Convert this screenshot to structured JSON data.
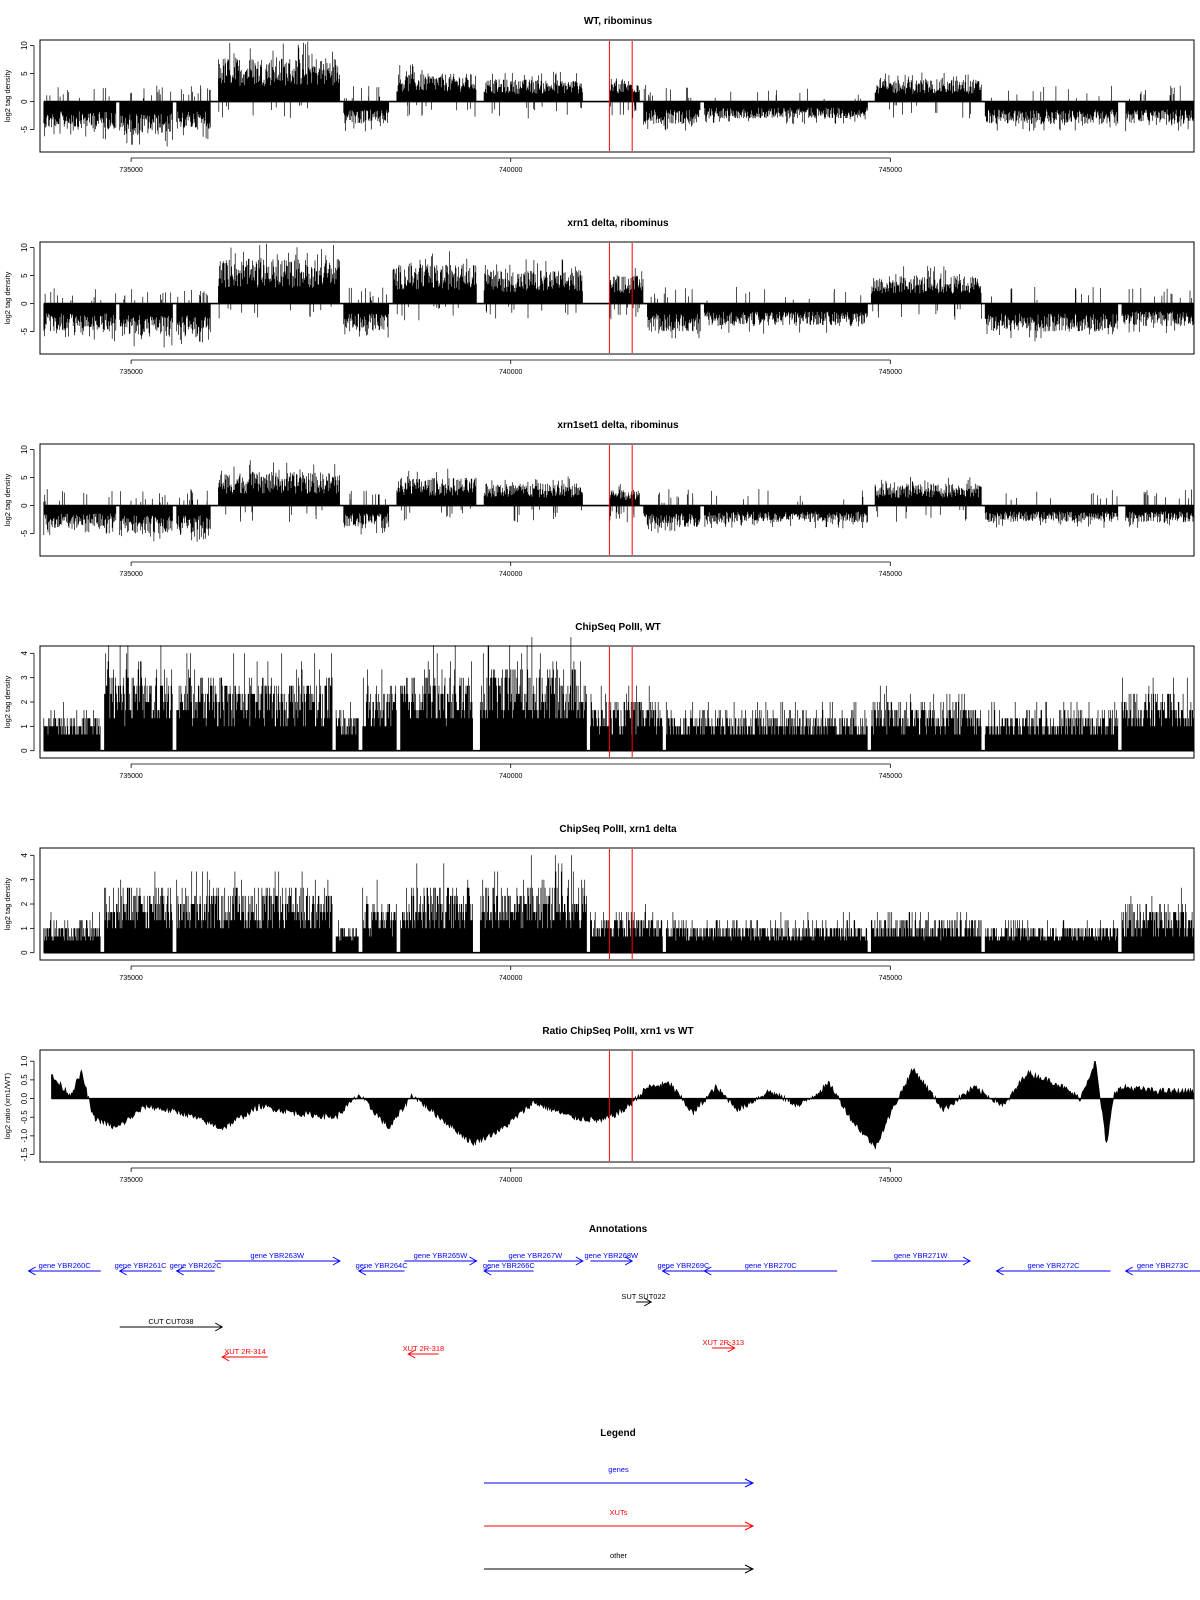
{
  "chart_data": [
    {
      "type": "bar",
      "title": "WT, ribominus",
      "xlabel": "",
      "ylabel": "log2 tag density",
      "xlim": [
        733800,
        749000
      ],
      "ylim": [
        -9,
        11
      ],
      "yticks": [
        -5,
        0,
        5,
        10
      ],
      "xticks": [
        735000,
        740000,
        745000
      ],
      "x_tick_labels": [
        "735000",
        "740000",
        "745000"
      ],
      "marker_lines_x": [
        741300,
        741600
      ],
      "segments": [
        {
          "start": 733850,
          "end": 734800,
          "sign": -1,
          "amp": 5
        },
        {
          "start": 734850,
          "end": 735550,
          "sign": -1,
          "amp": 6
        },
        {
          "start": 735600,
          "end": 736050,
          "sign": -1,
          "amp": 5
        },
        {
          "start": 736150,
          "end": 737750,
          "sign": 1,
          "amp": 8
        },
        {
          "start": 737800,
          "end": 738400,
          "sign": -1,
          "amp": 4
        },
        {
          "start": 738500,
          "end": 739550,
          "sign": 1,
          "amp": 5
        },
        {
          "start": 739650,
          "end": 740950,
          "sign": 1,
          "amp": 4
        },
        {
          "start": 741300,
          "end": 741700,
          "sign": 1,
          "amp": 4
        },
        {
          "start": 741750,
          "end": 742500,
          "sign": -1,
          "amp": 4
        },
        {
          "start": 742550,
          "end": 744700,
          "sign": -1,
          "amp": 3
        },
        {
          "start": 744800,
          "end": 746200,
          "sign": 1,
          "amp": 4
        },
        {
          "start": 746250,
          "end": 748000,
          "sign": -1,
          "amp": 4
        },
        {
          "start": 748100,
          "end": 749000,
          "sign": -1,
          "amp": 4
        }
      ]
    },
    {
      "type": "bar",
      "title": "xrn1 delta, ribominus",
      "xlabel": "",
      "ylabel": "log2 tag density",
      "xlim": [
        733800,
        749000
      ],
      "ylim": [
        -9,
        11
      ],
      "yticks": [
        -5,
        0,
        5,
        10
      ],
      "xticks": [
        735000,
        740000,
        745000
      ],
      "x_tick_labels": [
        "735000",
        "740000",
        "745000"
      ],
      "marker_lines_x": [
        741300,
        741600
      ],
      "segments": [
        {
          "start": 733850,
          "end": 734800,
          "sign": -1,
          "amp": 5
        },
        {
          "start": 734850,
          "end": 735550,
          "sign": -1,
          "amp": 6
        },
        {
          "start": 735600,
          "end": 736050,
          "sign": -1,
          "amp": 6
        },
        {
          "start": 736150,
          "end": 737750,
          "sign": 1,
          "amp": 8
        },
        {
          "start": 737800,
          "end": 738400,
          "sign": -1,
          "amp": 5
        },
        {
          "start": 738450,
          "end": 739550,
          "sign": 1,
          "amp": 7
        },
        {
          "start": 739650,
          "end": 740950,
          "sign": 1,
          "amp": 6
        },
        {
          "start": 741300,
          "end": 741750,
          "sign": 1,
          "amp": 5
        },
        {
          "start": 741800,
          "end": 742500,
          "sign": -1,
          "amp": 5
        },
        {
          "start": 742550,
          "end": 744700,
          "sign": -1,
          "amp": 4
        },
        {
          "start": 744750,
          "end": 746200,
          "sign": 1,
          "amp": 5
        },
        {
          "start": 746250,
          "end": 748000,
          "sign": -1,
          "amp": 5
        },
        {
          "start": 748050,
          "end": 749000,
          "sign": -1,
          "amp": 4
        }
      ]
    },
    {
      "type": "bar",
      "title": "xrn1set1 delta, ribominus",
      "xlabel": "",
      "ylabel": "log2 tag density",
      "xlim": [
        733800,
        749000
      ],
      "ylim": [
        -9,
        11
      ],
      "yticks": [
        -5,
        0,
        5,
        10
      ],
      "xticks": [
        735000,
        740000,
        745000
      ],
      "x_tick_labels": [
        "735000",
        "740000",
        "745000"
      ],
      "marker_lines_x": [
        741300,
        741600
      ],
      "segments": [
        {
          "start": 733850,
          "end": 734800,
          "sign": -1,
          "amp": 4
        },
        {
          "start": 734850,
          "end": 735550,
          "sign": -1,
          "amp": 5
        },
        {
          "start": 735600,
          "end": 736050,
          "sign": -1,
          "amp": 5
        },
        {
          "start": 736150,
          "end": 737750,
          "sign": 1,
          "amp": 6
        },
        {
          "start": 737800,
          "end": 738400,
          "sign": -1,
          "amp": 4
        },
        {
          "start": 738500,
          "end": 739550,
          "sign": 1,
          "amp": 5
        },
        {
          "start": 739650,
          "end": 740950,
          "sign": 1,
          "amp": 4
        },
        {
          "start": 741300,
          "end": 741700,
          "sign": 1,
          "amp": 3
        },
        {
          "start": 741750,
          "end": 742500,
          "sign": -1,
          "amp": 4
        },
        {
          "start": 742550,
          "end": 744700,
          "sign": -1,
          "amp": 3
        },
        {
          "start": 744800,
          "end": 746200,
          "sign": 1,
          "amp": 4
        },
        {
          "start": 746250,
          "end": 748000,
          "sign": -1,
          "amp": 3
        },
        {
          "start": 748100,
          "end": 749000,
          "sign": -1,
          "amp": 3
        }
      ]
    },
    {
      "type": "bar",
      "title": "ChipSeq PolII, WT",
      "xlabel": "",
      "ylabel": "log2 tag density",
      "xlim": [
        733800,
        749000
      ],
      "ylim": [
        -0.3,
        4.3
      ],
      "yticks": [
        0,
        1,
        2,
        3,
        4
      ],
      "xticks": [
        735000,
        740000,
        745000
      ],
      "x_tick_labels": [
        "735000",
        "740000",
        "745000"
      ],
      "marker_lines_x": [
        741300,
        741600
      ],
      "segments": [
        {
          "start": 733850,
          "end": 734600,
          "sign": 1,
          "amp": 1.5
        },
        {
          "start": 734650,
          "end": 735550,
          "sign": 1,
          "amp": 3.2
        },
        {
          "start": 735600,
          "end": 737650,
          "sign": 1,
          "amp": 3.0
        },
        {
          "start": 737700,
          "end": 738000,
          "sign": 1,
          "amp": 1.5
        },
        {
          "start": 738050,
          "end": 738500,
          "sign": 1,
          "amp": 2.6
        },
        {
          "start": 738550,
          "end": 739500,
          "sign": 1,
          "amp": 3.2
        },
        {
          "start": 739600,
          "end": 741000,
          "sign": 1,
          "amp": 3.5
        },
        {
          "start": 741050,
          "end": 742000,
          "sign": 1,
          "amp": 2.0
        },
        {
          "start": 742050,
          "end": 744700,
          "sign": 1,
          "amp": 1.6
        },
        {
          "start": 744750,
          "end": 746200,
          "sign": 1,
          "amp": 2.0
        },
        {
          "start": 746250,
          "end": 748000,
          "sign": 1,
          "amp": 1.6
        },
        {
          "start": 748050,
          "end": 749000,
          "sign": 1,
          "amp": 2.4
        }
      ]
    },
    {
      "type": "bar",
      "title": "ChipSeq PolII, xrn1 delta",
      "xlabel": "",
      "ylabel": "log2 tag density",
      "xlim": [
        733800,
        749000
      ],
      "ylim": [
        -0.3,
        4.3
      ],
      "yticks": [
        0,
        1,
        2,
        3,
        4
      ],
      "xticks": [
        735000,
        740000,
        745000
      ],
      "x_tick_labels": [
        "735000",
        "740000",
        "745000"
      ],
      "marker_lines_x": [
        741300,
        741600
      ],
      "segments": [
        {
          "start": 733850,
          "end": 734600,
          "sign": 1,
          "amp": 1.2
        },
        {
          "start": 734650,
          "end": 735550,
          "sign": 1,
          "amp": 2.7
        },
        {
          "start": 735600,
          "end": 737650,
          "sign": 1,
          "amp": 2.6
        },
        {
          "start": 737700,
          "end": 738000,
          "sign": 1,
          "amp": 1.0
        },
        {
          "start": 738050,
          "end": 738500,
          "sign": 1,
          "amp": 2.2
        },
        {
          "start": 738550,
          "end": 739500,
          "sign": 1,
          "amp": 2.8
        },
        {
          "start": 739600,
          "end": 741000,
          "sign": 1,
          "amp": 2.9
        },
        {
          "start": 741050,
          "end": 742000,
          "sign": 1,
          "amp": 1.6
        },
        {
          "start": 742050,
          "end": 744700,
          "sign": 1,
          "amp": 1.2
        },
        {
          "start": 744750,
          "end": 746200,
          "sign": 1,
          "amp": 1.4
        },
        {
          "start": 746250,
          "end": 748000,
          "sign": 1,
          "amp": 1.1
        },
        {
          "start": 748050,
          "end": 749000,
          "sign": 1,
          "amp": 2.0
        }
      ]
    },
    {
      "type": "area",
      "title": "Ratio ChipSeq PolII, xrn1 vs WT",
      "xlabel": "",
      "ylabel": "log2 ratio (xrn1/WT)",
      "xlim": [
        733800,
        749000
      ],
      "ylim": [
        -1.7,
        1.3
      ],
      "yticks": [
        -1.5,
        -1.0,
        -0.5,
        0.0,
        0.5,
        1.0
      ],
      "y_tick_labels": [
        "-1.5",
        "-1.0",
        "-0.5",
        "0.0",
        "0.5",
        "1.0"
      ],
      "xticks": [
        735000,
        740000,
        745000
      ],
      "x_tick_labels": [
        "735000",
        "740000",
        "745000"
      ],
      "marker_lines_x": [
        741300,
        741600
      ],
      "x": [
        733950,
        734200,
        734350,
        734500,
        734800,
        735200,
        735700,
        736200,
        736700,
        737200,
        737700,
        738000,
        738400,
        738700,
        739000,
        739500,
        739900,
        740300,
        740800,
        741200,
        741500,
        741800,
        742100,
        742400,
        742700,
        743000,
        743400,
        743800,
        744200,
        744500,
        744800,
        745050,
        745300,
        745700,
        746100,
        746500,
        746800,
        747200,
        747500,
        747700,
        747850,
        747950,
        748100,
        748500,
        749000
      ],
      "values": [
        0.6,
        0.1,
        0.7,
        -0.5,
        -0.8,
        -0.2,
        -0.4,
        -0.8,
        -0.2,
        -0.4,
        -0.5,
        0.1,
        -0.8,
        0.1,
        -0.4,
        -1.2,
        -0.8,
        -0.1,
        -0.5,
        -0.6,
        -0.3,
        0.3,
        0.4,
        -0.4,
        0.3,
        -0.3,
        0.2,
        -0.2,
        0.4,
        -0.6,
        -1.3,
        -0.2,
        0.8,
        -0.3,
        0.3,
        -0.2,
        0.7,
        0.4,
        0.0,
        1.0,
        -1.3,
        0.2,
        0.3,
        0.2,
        0.2
      ]
    }
  ],
  "annotations": {
    "title": "Annotations",
    "genes": [
      {
        "label": "gene YBR260C",
        "start": 733650,
        "end": 734600,
        "dir": "left",
        "row": 1
      },
      {
        "label": "gene YBR261C",
        "start": 734850,
        "end": 735400,
        "dir": "left",
        "row": 1
      },
      {
        "label": "gene YBR262C",
        "start": 735600,
        "end": 736100,
        "dir": "left",
        "row": 1
      },
      {
        "label": "gene YBR263W",
        "start": 736100,
        "end": 737750,
        "dir": "right",
        "row": 0
      },
      {
        "label": "gene YBR264C",
        "start": 738000,
        "end": 738600,
        "dir": "left",
        "row": 1
      },
      {
        "label": "gene YBR265W",
        "start": 738600,
        "end": 739550,
        "dir": "right",
        "row": 0
      },
      {
        "label": "gene YBR266C",
        "start": 739650,
        "end": 740300,
        "dir": "left",
        "row": 1
      },
      {
        "label": "gene YBR267W",
        "start": 739700,
        "end": 740950,
        "dir": "right",
        "row": 0
      },
      {
        "label": "gene YBR268W",
        "start": 741050,
        "end": 741600,
        "dir": "right",
        "row": 0
      },
      {
        "label": "gene YBR269C",
        "start": 742000,
        "end": 742550,
        "dir": "left",
        "row": 1
      },
      {
        "label": "gene YBR270C",
        "start": 742550,
        "end": 744300,
        "dir": "left",
        "row": 1
      },
      {
        "label": "gene YBR271W",
        "start": 744750,
        "end": 746050,
        "dir": "right",
        "row": 0
      },
      {
        "label": "gene YBR272C",
        "start": 746400,
        "end": 747900,
        "dir": "left",
        "row": 1
      },
      {
        "label": "gene YBR273C",
        "start": 748100,
        "end": 749450,
        "dir": "left",
        "row": 1
      }
    ],
    "others": [
      {
        "label": "CUT CUT038",
        "start": 734850,
        "end": 736200,
        "dir": "right",
        "row": 3
      },
      {
        "label": "SUT SUT022",
        "start": 741650,
        "end": 741850,
        "dir": "right",
        "row": 2
      }
    ],
    "xuts": [
      {
        "label": "XUT 2R-314",
        "start": 736200,
        "end": 736800,
        "dir": "left",
        "row": 4
      },
      {
        "label": "XUT 2R-318",
        "start": 738650,
        "end": 739050,
        "dir": "left",
        "row": 5
      },
      {
        "label": "XUT 2R-313",
        "start": 742650,
        "end": 742950,
        "dir": "right",
        "row": 6
      }
    ]
  },
  "legend": {
    "title": "Legend",
    "items": [
      {
        "label": "genes",
        "color": "#0000ff"
      },
      {
        "label": "XUTs",
        "color": "#ff0000"
      },
      {
        "label": "other",
        "color": "#000000"
      }
    ]
  },
  "colors": {
    "gene": "#0000ff",
    "xut": "#ff0000",
    "other": "#000000",
    "marker": "#ff0000",
    "bar": "#000000"
  }
}
